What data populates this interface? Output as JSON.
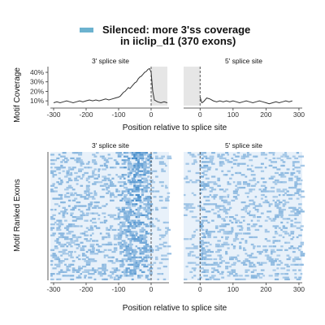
{
  "legend": {
    "swatch_color": "#6cb2cf",
    "line1": "Silenced: more 3'ss coverage",
    "line2": "in iiclip_d1 (370 exons)"
  },
  "chart_data": [
    {
      "type": "line",
      "facet": "3' splice site",
      "ylabel": "Motif Coverage",
      "xlabel": "Position relative to splice site",
      "xlim": [
        -310,
        55
      ],
      "ylim": [
        5,
        46
      ],
      "yticks": [
        10,
        20,
        30,
        40
      ],
      "ytick_labels": [
        "10%",
        "20%",
        "30%",
        "40%"
      ],
      "xticks": [
        -300,
        -200,
        -100,
        0
      ],
      "xtick_labels": [
        "-300",
        "-200",
        "-100",
        "0"
      ],
      "shaded_range": [
        0,
        50
      ],
      "vline": 0,
      "series": [
        {
          "x": [
            -300,
            -290,
            -280,
            -270,
            -260,
            -250,
            -240,
            -230,
            -220,
            -210,
            -200,
            -190,
            -180,
            -170,
            -160,
            -150,
            -140,
            -130,
            -120,
            -110,
            -100,
            -95,
            -90,
            -85,
            -80,
            -75,
            -70,
            -65,
            -60,
            -55,
            -50,
            -45,
            -40,
            -35,
            -30,
            -25,
            -20,
            -15,
            -10,
            -5,
            0,
            5,
            10,
            20,
            30,
            40,
            50
          ],
          "y": [
            8,
            9,
            8,
            9,
            10,
            9,
            8,
            9,
            10,
            9,
            10,
            11,
            10,
            11,
            10,
            11,
            12,
            11,
            12,
            13,
            14,
            15,
            17,
            19,
            20,
            22,
            24,
            23,
            25,
            27,
            29,
            30,
            33,
            35,
            36,
            38,
            40,
            41,
            43,
            44,
            40,
            20,
            11,
            9,
            8,
            9,
            8
          ]
        }
      ]
    },
    {
      "type": "line",
      "facet": "5' splice site",
      "xlabel": "Position relative to splice site",
      "xlim": [
        -50,
        310
      ],
      "ylim": [
        5,
        46
      ],
      "xticks": [
        0,
        100,
        200,
        300
      ],
      "xtick_labels": [
        "0",
        "100",
        "200",
        "300"
      ],
      "shaded_range": [
        -50,
        0
      ],
      "vline": 0,
      "series": [
        {
          "x": [
            0,
            5,
            10,
            15,
            20,
            30,
            40,
            50,
            60,
            70,
            80,
            90,
            100,
            110,
            120,
            130,
            140,
            150,
            160,
            170,
            180,
            190,
            200,
            210,
            220,
            230,
            240,
            250,
            260,
            270,
            280
          ],
          "y": [
            14,
            8,
            9,
            11,
            13,
            12,
            10,
            9,
            10,
            9,
            10,
            9,
            10,
            9,
            8,
            9,
            10,
            9,
            8,
            9,
            10,
            9,
            8,
            7,
            8,
            9,
            8,
            9,
            10,
            9,
            10
          ]
        }
      ]
    },
    {
      "type": "heatmap",
      "facet": "3' splice site",
      "ylabel": "Motif Ranked Exons",
      "xlabel": "Position relative to splice site",
      "xlim": [
        -310,
        55
      ],
      "xticks": [
        -300,
        -200,
        -100,
        0
      ],
      "xtick_labels": [
        "-300",
        "-200",
        "-100",
        "0"
      ],
      "vline": 0,
      "colors": [
        "#e8f1fa",
        "#3a86c8"
      ]
    },
    {
      "type": "heatmap",
      "facet": "5' splice site",
      "xlabel": "Position relative to splice site",
      "xlim": [
        -50,
        310
      ],
      "xticks": [
        0,
        100,
        200,
        300
      ],
      "xtick_labels": [
        "0",
        "100",
        "200",
        "300"
      ],
      "vline": 0,
      "colors": [
        "#e8f1fa",
        "#3a86c8"
      ]
    }
  ]
}
